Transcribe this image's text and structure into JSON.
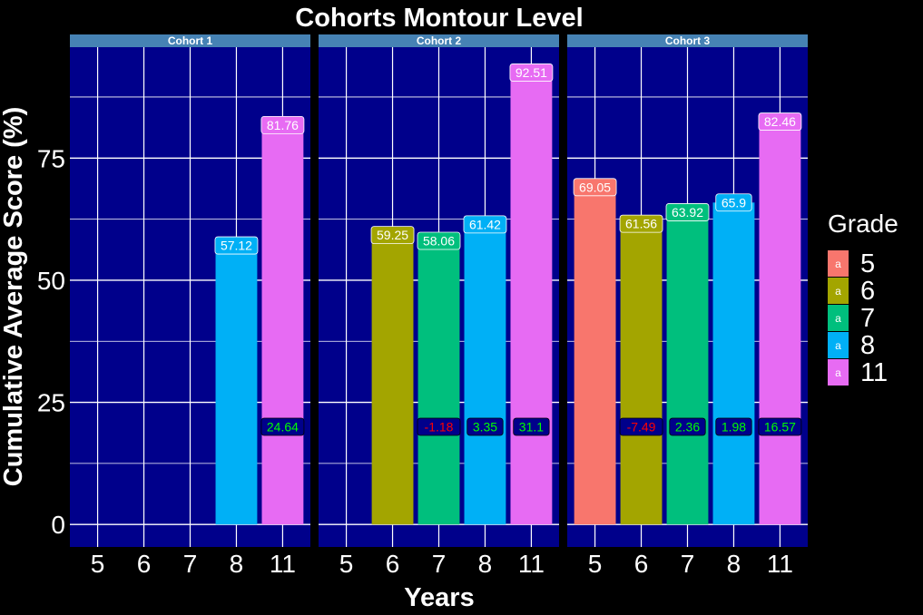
{
  "chart_data": {
    "type": "bar",
    "title": "Cohorts Montour Level",
    "xlabel": "Years",
    "ylabel": "Cumulative Average Score (%)",
    "ylim": [
      -4.6,
      97.7
    ],
    "yticks": [
      0,
      25,
      50,
      75
    ],
    "categories": [
      "5",
      "6",
      "7",
      "8",
      "11"
    ],
    "legend": {
      "title": "Grade",
      "position": "right",
      "key_label": "a",
      "entries": [
        {
          "label": "5",
          "color": "#F8766D"
        },
        {
          "label": "6",
          "color": "#A3A500"
        },
        {
          "label": "7",
          "color": "#00BF7D"
        },
        {
          "label": "8",
          "color": "#00B0F6"
        },
        {
          "label": "11",
          "color": "#E76BF3"
        }
      ]
    },
    "colors": {
      "panel_bg": "#00008B",
      "strip_bg": "#4682B4",
      "grid": "#FFFFFF",
      "page_bg": "#000000",
      "change_label_bg": "#00008B",
      "change_positive_text": "#00FF00",
      "change_negative_text": "#FF0000"
    },
    "change_label_y": 20,
    "panels": [
      {
        "name": "Cohort 1",
        "bars": [
          {
            "category": "8",
            "grade": "8",
            "value": 57.12,
            "label": "57.12"
          },
          {
            "category": "11",
            "grade": "11",
            "value": 81.76,
            "label": "81.76",
            "change": 24.64,
            "change_label": "24.64"
          }
        ]
      },
      {
        "name": "Cohort 2",
        "bars": [
          {
            "category": "6",
            "grade": "6",
            "value": 59.25,
            "label": "59.25"
          },
          {
            "category": "7",
            "grade": "7",
            "value": 58.06,
            "label": "58.06",
            "change": -1.18,
            "change_label": "-1.18"
          },
          {
            "category": "8",
            "grade": "8",
            "value": 61.42,
            "label": "61.42",
            "change": 3.35,
            "change_label": "3.35"
          },
          {
            "category": "11",
            "grade": "11",
            "value": 92.51,
            "label": "92.51",
            "change": 31.1,
            "change_label": "31.1"
          }
        ]
      },
      {
        "name": "Cohort 3",
        "bars": [
          {
            "category": "5",
            "grade": "5",
            "value": 69.05,
            "label": "69.05"
          },
          {
            "category": "6",
            "grade": "6",
            "value": 61.56,
            "label": "61.56",
            "change": -7.49,
            "change_label": "-7.49"
          },
          {
            "category": "7",
            "grade": "7",
            "value": 63.92,
            "label": "63.92",
            "change": 2.36,
            "change_label": "2.36"
          },
          {
            "category": "8",
            "grade": "8",
            "value": 65.9,
            "label": "65.9",
            "change": 1.98,
            "change_label": "1.98"
          },
          {
            "category": "11",
            "grade": "11",
            "value": 82.46,
            "label": "82.46",
            "change": 16.57,
            "change_label": "16.57"
          }
        ]
      }
    ]
  }
}
